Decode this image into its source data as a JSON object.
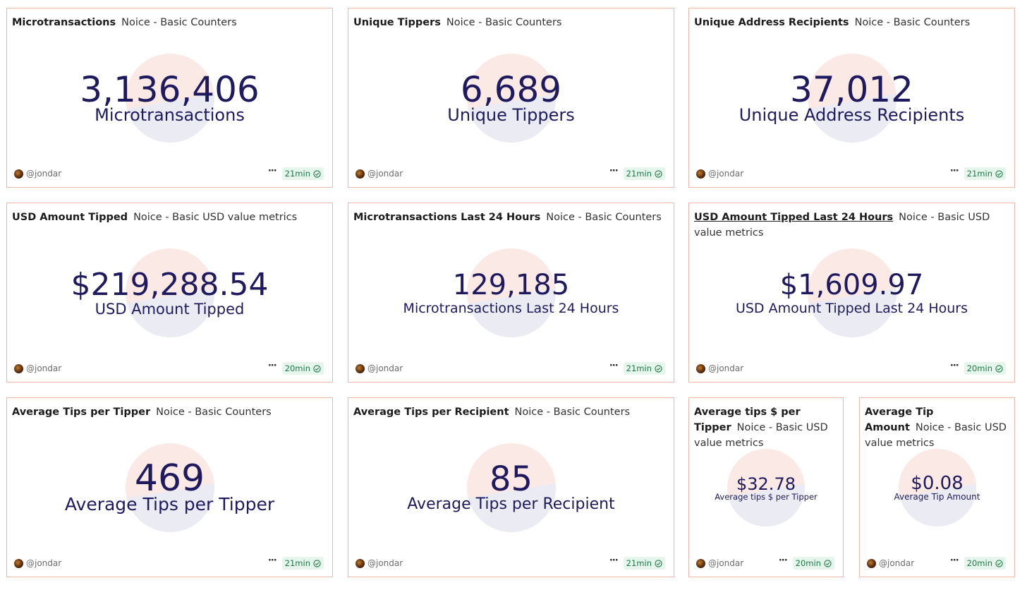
{
  "colors": {
    "border": "#ecb9a8",
    "value_text": "#1f1a5e",
    "circle_top": "#fbe9e6",
    "circle_bottom": "#ebebf3",
    "badge_bg": "#e7f6ec",
    "badge_text": "#1c7a44"
  },
  "cards": [
    {
      "title": "Microtransactions",
      "subtitle": "Noice - Basic Counters",
      "value": "3,136,406",
      "caption": "Microtransactions",
      "author": "@jondar",
      "more_icon": "more-icon",
      "refresh": "21min",
      "status_icon": "check-circle-icon"
    },
    {
      "title": "Unique Tippers",
      "subtitle": "Noice - Basic Counters",
      "value": "6,689",
      "caption": "Unique Tippers",
      "author": "@jondar",
      "more_icon": "more-icon",
      "refresh": "21min",
      "status_icon": "check-circle-icon"
    },
    {
      "title": "Unique Address Recipients",
      "subtitle": "Noice - Basic Counters",
      "value": "37,012",
      "caption": "Unique Address Recipients",
      "author": "@jondar",
      "more_icon": "more-icon",
      "refresh": "21min",
      "status_icon": "check-circle-icon"
    },
    {
      "title": "USD Amount Tipped",
      "subtitle": "Noice - Basic USD value metrics",
      "value": "$219,288.54",
      "caption": "USD Amount Tipped",
      "author": "@jondar",
      "more_icon": "more-icon",
      "refresh": "20min",
      "status_icon": "check-circle-icon"
    },
    {
      "title": "Microtransactions Last 24 Hours",
      "subtitle": "Noice - Basic Counters",
      "value": "129,185",
      "caption": "Microtransactions Last 24 Hours",
      "author": "@jondar",
      "more_icon": "more-icon",
      "refresh": "21min",
      "status_icon": "check-circle-icon"
    },
    {
      "title": "USD Amount Tipped Last 24 Hours",
      "subtitle": "Noice - Basic USD value metrics",
      "value": "$1,609.97",
      "caption": "USD Amount Tipped Last 24 Hours",
      "author": "@jondar",
      "more_icon": "more-icon",
      "refresh": "20min",
      "status_icon": "check-circle-icon"
    },
    {
      "title": "Average Tips per Tipper",
      "subtitle": "Noice - Basic Counters",
      "value": "469",
      "caption": "Average Tips per Tipper",
      "author": "@jondar",
      "more_icon": "more-icon",
      "refresh": "21min",
      "status_icon": "check-circle-icon"
    },
    {
      "title": "Average Tips per Recipient",
      "subtitle": "Noice - Basic Counters",
      "value": "85",
      "caption": "Average Tips per Recipient",
      "author": "@jondar",
      "more_icon": "more-icon",
      "refresh": "21min",
      "status_icon": "check-circle-icon"
    },
    {
      "title": "Average tips $ per Tipper",
      "subtitle": "Noice - Basic USD value metrics",
      "value": "$32.78",
      "caption": "Average tips $ per Tipper",
      "author": "@jondar",
      "more_icon": "more-icon",
      "refresh": "20min",
      "status_icon": "check-circle-icon"
    },
    {
      "title": "Average Tip Amount",
      "subtitle": "Noice - Basic USD value metrics",
      "value": "$0.08",
      "caption": "Average Tip Amount",
      "author": "@jondar",
      "more_icon": "more-icon",
      "refresh": "20min",
      "status_icon": "check-circle-icon"
    }
  ]
}
